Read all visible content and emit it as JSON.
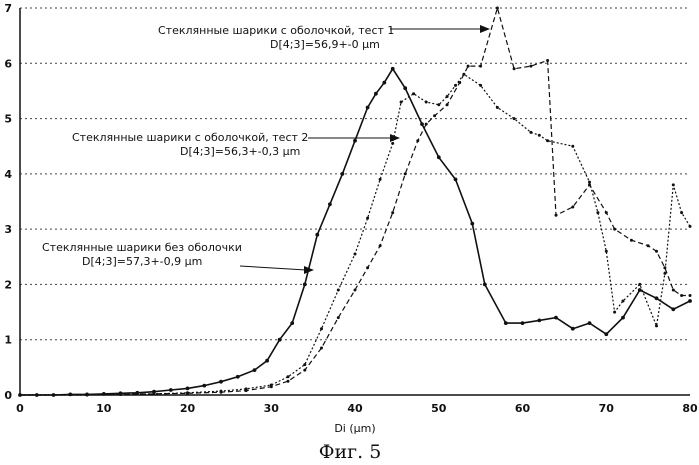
{
  "chart_data": {
    "type": "line",
    "caption": "Фиг. 5",
    "xlabel": "Di (µm)",
    "ylabel": "",
    "xlim": [
      0,
      80
    ],
    "ylim": [
      0,
      7
    ],
    "xticks": [
      "0",
      "10",
      "20",
      "30",
      "40",
      "50",
      "60",
      "70",
      "80"
    ],
    "yticks": [
      "0",
      "1",
      "2",
      "3",
      "4",
      "5",
      "6",
      "7"
    ],
    "grid": "horizontal dashed",
    "series": [
      {
        "name": "Стеклянные шарики без оболочки",
        "sublabel": "D[4;3]=57,3+-0,9 µm",
        "style": "solid",
        "color": "#111111",
        "points": [
          [
            0,
            0
          ],
          [
            2,
            0
          ],
          [
            4,
            0
          ],
          [
            6,
            0.01
          ],
          [
            8,
            0.01
          ],
          [
            10,
            0.02
          ],
          [
            12,
            0.03
          ],
          [
            14,
            0.04
          ],
          [
            16,
            0.06
          ],
          [
            18,
            0.09
          ],
          [
            20,
            0.12
          ],
          [
            22,
            0.17
          ],
          [
            24,
            0.24
          ],
          [
            26,
            0.33
          ],
          [
            28,
            0.45
          ],
          [
            29.5,
            0.62
          ],
          [
            31,
            1.0
          ],
          [
            32.5,
            1.3
          ],
          [
            34,
            2.0
          ],
          [
            35.5,
            2.9
          ],
          [
            37,
            3.45
          ],
          [
            38.5,
            4.0
          ],
          [
            40,
            4.6
          ],
          [
            41.5,
            5.2
          ],
          [
            42.5,
            5.45
          ],
          [
            43.5,
            5.65
          ],
          [
            44.5,
            5.9
          ],
          [
            46,
            5.55
          ],
          [
            48,
            4.9
          ],
          [
            50,
            4.3
          ],
          [
            52,
            3.9
          ],
          [
            54,
            3.1
          ],
          [
            55.5,
            2.0
          ],
          [
            58,
            1.3
          ],
          [
            60,
            1.3
          ],
          [
            62,
            1.35
          ],
          [
            64,
            1.4
          ],
          [
            66,
            1.2
          ],
          [
            68,
            1.3
          ],
          [
            70,
            1.1
          ],
          [
            72,
            1.4
          ],
          [
            74,
            1.9
          ],
          [
            76,
            1.75
          ],
          [
            78,
            1.55
          ],
          [
            80,
            1.7
          ]
        ]
      },
      {
        "name": "Стеклянные шарики с оболочкой, тест 1",
        "sublabel": "D[4;3]=56,9+-0 µm",
        "style": "dash",
        "color": "#111111",
        "points": [
          [
            0,
            0
          ],
          [
            4,
            0
          ],
          [
            8,
            0
          ],
          [
            12,
            0.01
          ],
          [
            16,
            0.02
          ],
          [
            20,
            0.03
          ],
          [
            24,
            0.05
          ],
          [
            27,
            0.08
          ],
          [
            30,
            0.15
          ],
          [
            32,
            0.25
          ],
          [
            34,
            0.45
          ],
          [
            36,
            0.85
          ],
          [
            38,
            1.4
          ],
          [
            40,
            1.9
          ],
          [
            41.5,
            2.3
          ],
          [
            43,
            2.7
          ],
          [
            44.5,
            3.3
          ],
          [
            46,
            4.0
          ],
          [
            47.5,
            4.6
          ],
          [
            48.5,
            4.9
          ],
          [
            49.5,
            5.05
          ],
          [
            51,
            5.25
          ],
          [
            52.5,
            5.65
          ],
          [
            53.5,
            5.95
          ],
          [
            55,
            5.95
          ],
          [
            57,
            7.0
          ],
          [
            59,
            5.9
          ],
          [
            61,
            5.95
          ],
          [
            63,
            6.05
          ],
          [
            64,
            3.25
          ],
          [
            66,
            3.4
          ],
          [
            68,
            3.8
          ],
          [
            70,
            3.3
          ],
          [
            71,
            3.0
          ],
          [
            73,
            2.8
          ],
          [
            75,
            2.7
          ],
          [
            76,
            2.6
          ],
          [
            77,
            2.3
          ],
          [
            78,
            1.9
          ],
          [
            79,
            1.8
          ],
          [
            80,
            1.8
          ]
        ]
      },
      {
        "name": "Стеклянные шарики с оболочкой, тест 2",
        "sublabel": "D[4;3]=56,3+-0,3 µm",
        "style": "dot",
        "color": "#111111",
        "points": [
          [
            0,
            0
          ],
          [
            4,
            0
          ],
          [
            8,
            0
          ],
          [
            12,
            0.01
          ],
          [
            16,
            0.02
          ],
          [
            20,
            0.04
          ],
          [
            24,
            0.07
          ],
          [
            27,
            0.11
          ],
          [
            30,
            0.18
          ],
          [
            32,
            0.33
          ],
          [
            34,
            0.55
          ],
          [
            36,
            1.2
          ],
          [
            38,
            1.9
          ],
          [
            40,
            2.55
          ],
          [
            41.5,
            3.2
          ],
          [
            43,
            3.9
          ],
          [
            44.5,
            4.55
          ],
          [
            45.5,
            5.3
          ],
          [
            47,
            5.45
          ],
          [
            48.5,
            5.3
          ],
          [
            50,
            5.25
          ],
          [
            51,
            5.4
          ],
          [
            52,
            5.6
          ],
          [
            53,
            5.8
          ],
          [
            55,
            5.6
          ],
          [
            57,
            5.2
          ],
          [
            59,
            5.0
          ],
          [
            61,
            4.75
          ],
          [
            62,
            4.7
          ],
          [
            63,
            4.6
          ],
          [
            66,
            4.5
          ],
          [
            68,
            3.85
          ],
          [
            69,
            3.3
          ],
          [
            70,
            2.6
          ],
          [
            71,
            1.5
          ],
          [
            72,
            1.7
          ],
          [
            74,
            2.0
          ],
          [
            76,
            1.25
          ],
          [
            77,
            2.2
          ],
          [
            78,
            3.8
          ],
          [
            79,
            3.3
          ],
          [
            80,
            3.05
          ]
        ]
      }
    ],
    "annotations": [
      {
        "line1": "Стеклянные шарики с оболочкой, тест 1",
        "line2": "D[4;3]=56,9+-0 µm"
      },
      {
        "line1": "Стеклянные шарики с оболочкой, тест 2",
        "line2": "D[4;3]=56,3+-0,3 µm"
      },
      {
        "line1": "Стеклянные шарики без оболочки",
        "line2": "D[4;3]=57,3+-0,9 µm"
      }
    ]
  }
}
